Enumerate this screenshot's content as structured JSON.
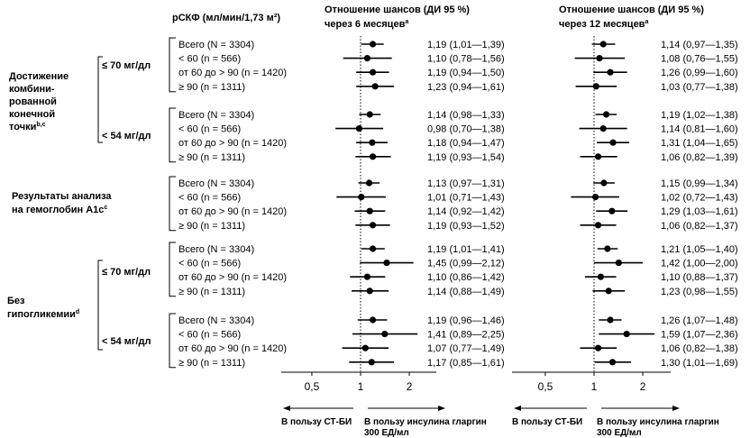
{
  "header": {
    "egfr": "рСКФ (мл/мин/1,73 м²)",
    "or6_line1": "Отношение шансов (ДИ 95 %)",
    "or6_line2": "через 6 месяцев",
    "or6_sup": "a",
    "or12_line1": "Отношение шансов (ДИ 95 %)",
    "or12_line2": "через 12 месяцев",
    "or12_sup": "a"
  },
  "sections": [
    {
      "title_lines": [
        "Достижение",
        "комбини-",
        "рованной",
        "конечной",
        "точки"
      ],
      "title_sup": "b,c",
      "subgroups": [
        {
          "label": "≤ 70 мг/дл"
        },
        {
          "label": "< 54 мг/дл"
        }
      ]
    },
    {
      "title_lines": [
        "Результаты анализа",
        "на гемоглобин A1c"
      ],
      "title_sup": "c",
      "subgroups": []
    },
    {
      "title_lines": [
        "Без",
        "гипогликемии"
      ],
      "title_sup": "d",
      "subgroups": [
        {
          "label": "≤ 70 мг/дл"
        },
        {
          "label": "< 54 мг/дл"
        }
      ]
    }
  ],
  "row_labels": [
    "Всего (N = 3304)",
    "< 60 (n = 566)",
    "от 60 до > 90 (n = 1420)",
    "≥ 90 (n = 1311)"
  ],
  "axis": {
    "ticks": [
      0.5,
      1,
      2
    ],
    "tick_labels": [
      "0,5",
      "1",
      "2"
    ],
    "left_label": "В пользу СТ-БИ",
    "right_label_line1": "В пользу инсулина гларгин",
    "right_label_line2": "300 ЕД/мл"
  },
  "chart_data": [
    {
      "type": "forest",
      "title": "Отношение шансов (ДИ 95 %) через 6 месяцев",
      "scale": "log",
      "reference": 1,
      "rows": [
        {
          "or": 1.19,
          "lo": 1.01,
          "hi": 1.39,
          "text": "1,19 (1,01—1,39)"
        },
        {
          "or": 1.1,
          "lo": 0.78,
          "hi": 1.56,
          "text": "1,10 (0,78—1,56)"
        },
        {
          "or": 1.19,
          "lo": 0.94,
          "hi": 1.5,
          "text": "1,19 (0,94—1,50)"
        },
        {
          "or": 1.23,
          "lo": 0.94,
          "hi": 1.61,
          "text": "1,23 (0,94—1,61)"
        },
        {
          "or": 1.14,
          "lo": 0.98,
          "hi": 1.33,
          "text": "1,14 (0,98—1,33)"
        },
        {
          "or": 0.98,
          "lo": 0.7,
          "hi": 1.38,
          "text": "0,98 (0,70—1,38)"
        },
        {
          "or": 1.18,
          "lo": 0.94,
          "hi": 1.47,
          "text": "1,18 (0,94—1,47)"
        },
        {
          "or": 1.19,
          "lo": 0.93,
          "hi": 1.54,
          "text": "1,19 (0,93—1,54)"
        },
        {
          "or": 1.13,
          "lo": 0.97,
          "hi": 1.31,
          "text": "1,13 (0,97—1,31)"
        },
        {
          "or": 1.01,
          "lo": 0.71,
          "hi": 1.43,
          "text": "1,01 (0,71—1,43)"
        },
        {
          "or": 1.14,
          "lo": 0.92,
          "hi": 1.42,
          "text": "1,14 (0,92—1,42)"
        },
        {
          "or": 1.19,
          "lo": 0.93,
          "hi": 1.52,
          "text": "1,19 (0,93—1,52)"
        },
        {
          "or": 1.19,
          "lo": 1.01,
          "hi": 1.41,
          "text": "1,19 (1,01—1,41)"
        },
        {
          "or": 1.45,
          "lo": 0.99,
          "hi": 2.12,
          "text": "1,45 (0,99—2,12)"
        },
        {
          "or": 1.1,
          "lo": 0.86,
          "hi": 1.42,
          "text": "1,10 (0,86—1,42)"
        },
        {
          "or": 1.14,
          "lo": 0.88,
          "hi": 1.49,
          "text": "1,14 (0,88—1,49)"
        },
        {
          "or": 1.19,
          "lo": 0.96,
          "hi": 1.46,
          "text": "1,19 (0,96—1,46)"
        },
        {
          "or": 1.41,
          "lo": 0.89,
          "hi": 2.25,
          "text": "1,41 (0,89—2,25)"
        },
        {
          "or": 1.07,
          "lo": 0.77,
          "hi": 1.49,
          "text": "1,07 (0,77—1,49)"
        },
        {
          "or": 1.17,
          "lo": 0.85,
          "hi": 1.61,
          "text": "1,17 (0,85—1,61)"
        }
      ]
    },
    {
      "type": "forest",
      "title": "Отношение шансов (ДИ 95 %) через 12 месяцев",
      "scale": "log",
      "reference": 1,
      "rows": [
        {
          "or": 1.14,
          "lo": 0.97,
          "hi": 1.35,
          "text": "1,14 (0,97—1,35)"
        },
        {
          "or": 1.08,
          "lo": 0.76,
          "hi": 1.55,
          "text": "1,08 (0,76—1,55)"
        },
        {
          "or": 1.26,
          "lo": 0.99,
          "hi": 1.6,
          "text": "1,26 (0,99—1,60)"
        },
        {
          "or": 1.03,
          "lo": 0.77,
          "hi": 1.38,
          "text": "1,03 (0,77—1,38)"
        },
        {
          "or": 1.19,
          "lo": 1.02,
          "hi": 1.38,
          "text": "1,19 (1,02—1,38)"
        },
        {
          "or": 1.14,
          "lo": 0.81,
          "hi": 1.6,
          "text": "1,14 (0,81—1,60)"
        },
        {
          "or": 1.31,
          "lo": 1.04,
          "hi": 1.65,
          "text": "1,31 (1,04—1,65)"
        },
        {
          "or": 1.06,
          "lo": 0.82,
          "hi": 1.39,
          "text": "1,06 (0,82—1,39)"
        },
        {
          "or": 1.15,
          "lo": 0.99,
          "hi": 1.34,
          "text": "1,15 (0,99—1,34)"
        },
        {
          "or": 1.02,
          "lo": 0.72,
          "hi": 1.43,
          "text": "1,02 (0,72—1,43)"
        },
        {
          "or": 1.29,
          "lo": 1.03,
          "hi": 1.61,
          "text": "1,29 (1,03—1,61)"
        },
        {
          "or": 1.06,
          "lo": 0.82,
          "hi": 1.37,
          "text": "1,06 (0,82—1,37)"
        },
        {
          "or": 1.21,
          "lo": 1.05,
          "hi": 1.4,
          "text": "1,21 (1,05—1,40)"
        },
        {
          "or": 1.42,
          "lo": 1.0,
          "hi": 2.0,
          "text": "1,42 (1,00—2,00)"
        },
        {
          "or": 1.1,
          "lo": 0.88,
          "hi": 1.37,
          "text": "1,10 (0,88—1,37)"
        },
        {
          "or": 1.23,
          "lo": 0.98,
          "hi": 1.55,
          "text": "1,23 (0,98—1,55)"
        },
        {
          "or": 1.26,
          "lo": 1.07,
          "hi": 1.48,
          "text": "1,26 (1,07—1,48)"
        },
        {
          "or": 1.59,
          "lo": 1.07,
          "hi": 2.36,
          "text": "1,59 (1,07—2,36)"
        },
        {
          "or": 1.06,
          "lo": 0.82,
          "hi": 1.38,
          "text": "1,06 (0,82—1,38)"
        },
        {
          "or": 1.3,
          "lo": 1.01,
          "hi": 1.69,
          "text": "1,30 (1,01—1,69)"
        }
      ]
    }
  ]
}
